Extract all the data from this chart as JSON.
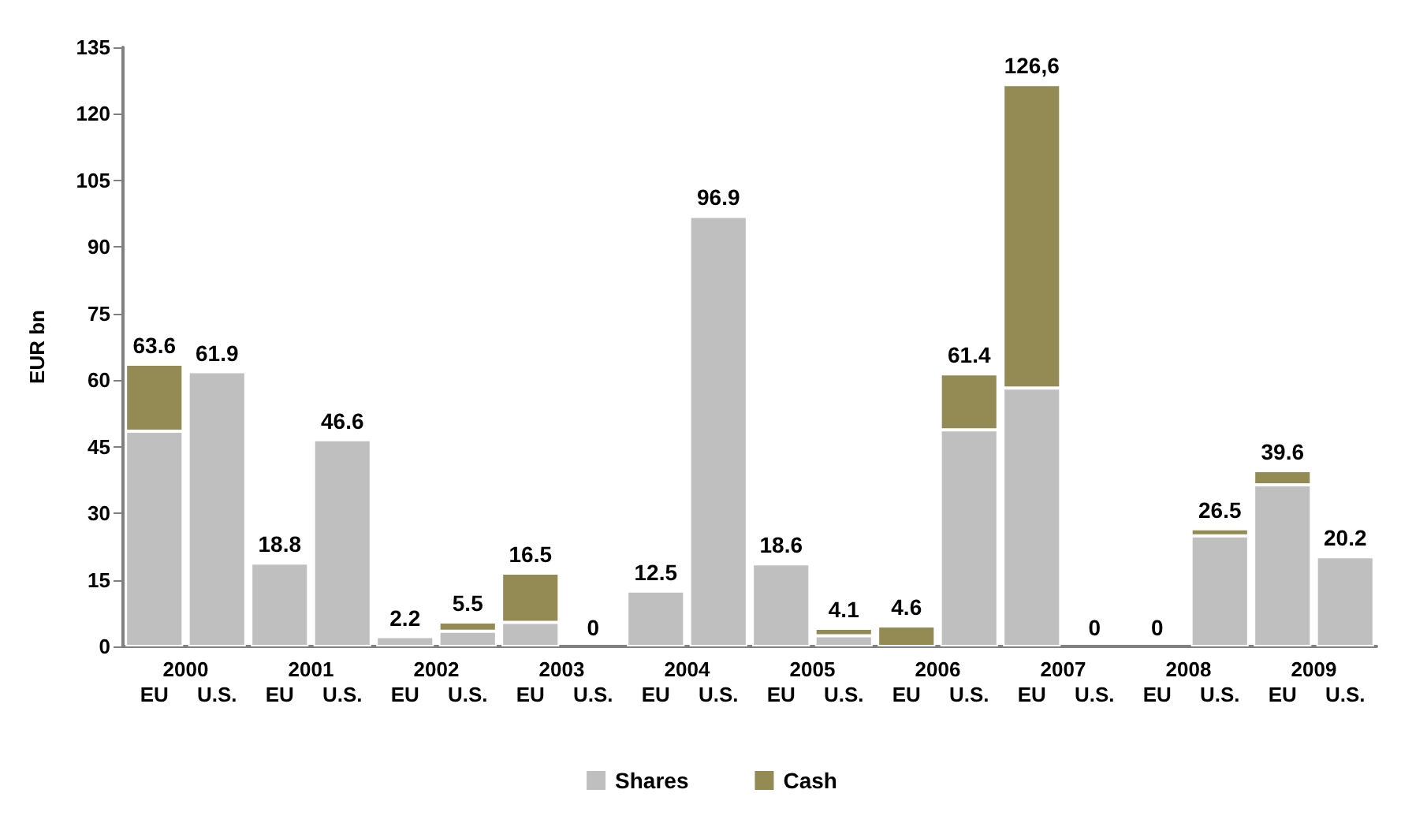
{
  "chart_data": {
    "type": "bar",
    "stacked": true,
    "ylabel": "EUR bn",
    "categories": [
      "EU",
      "U.S.",
      "EU",
      "U.S.",
      "EU",
      "U.S.",
      "EU",
      "U.S.",
      "EU",
      "U.S.",
      "EU",
      "U.S.",
      "EU",
      "U.S.",
      "EU",
      "U.S.",
      "EU",
      "U.S.",
      "EU",
      "U.S."
    ],
    "series": [
      {
        "name": "Shares",
        "color": "#bfbfbf",
        "values": [
          48.5,
          61.9,
          18.8,
          46.6,
          2.2,
          3.4,
          5.4,
          0,
          12.5,
          96.9,
          18.6,
          2.4,
          0,
          48.8,
          58.2,
          0,
          0,
          24.9,
          36.4,
          20.2
        ]
      },
      {
        "name": "Cash",
        "color": "#948a54",
        "values": [
          15.1,
          0,
          0,
          0,
          0,
          2.1,
          11.1,
          0,
          0,
          0,
          0,
          1.7,
          4.6,
          12.6,
          68.4,
          0,
          0,
          1.6,
          3.2,
          0
        ]
      }
    ],
    "totals": [
      "63.6",
      "61.9",
      "18.8",
      "46.6",
      "2.2",
      "5.5",
      "16.5",
      "0",
      "12.5",
      "96.9",
      "18.6",
      "4.1",
      "4.6",
      "61.4",
      "126,6",
      "0",
      "0",
      "26.5",
      "39.6",
      "20.2"
    ],
    "annotations": [
      "2000",
      "2001",
      "2002",
      "2003",
      "2004",
      "2005",
      "2006",
      "2007",
      "2008",
      "2009"
    ],
    "ylim": [
      0,
      135
    ],
    "yticks": [
      0,
      15,
      30,
      45,
      60,
      75,
      90,
      105,
      120,
      135
    ],
    "grid": false,
    "legend": "bottom"
  }
}
